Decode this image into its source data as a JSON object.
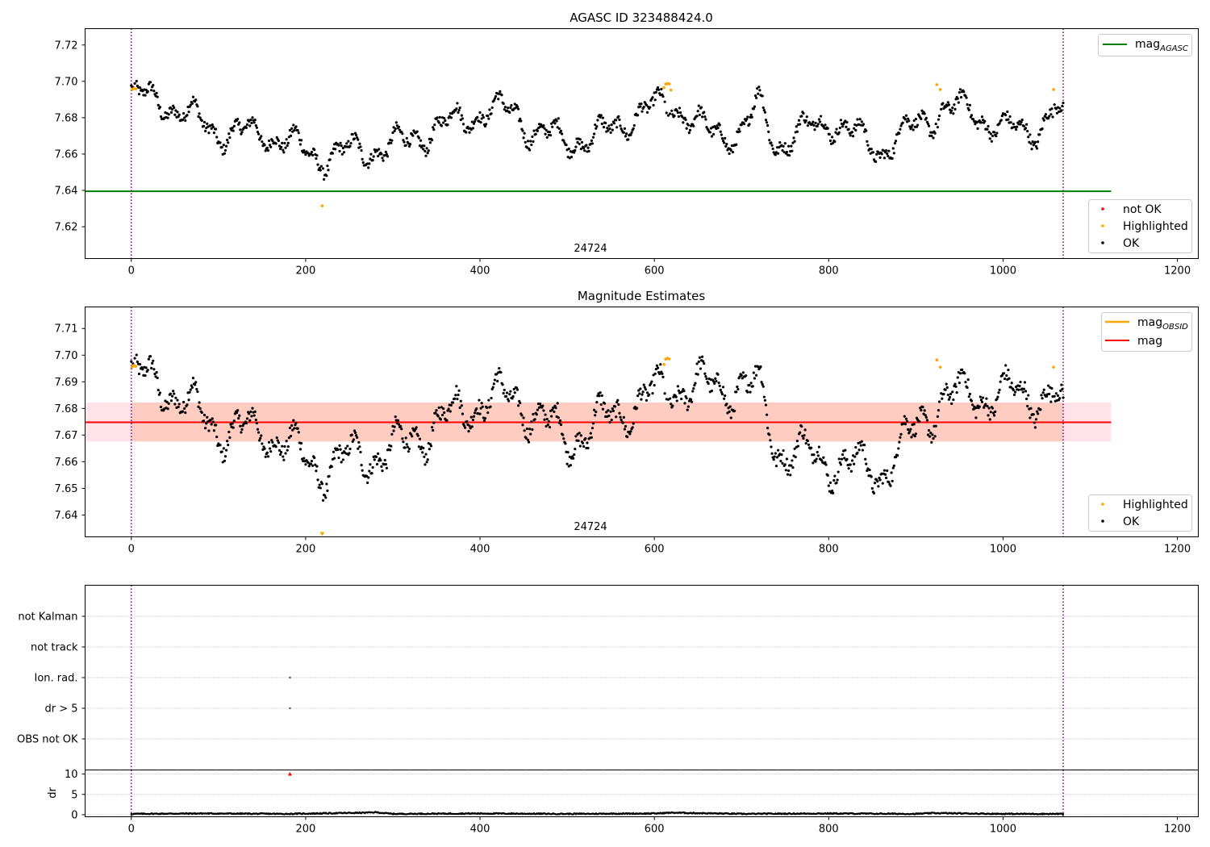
{
  "chart_data": [
    {
      "type": "scatter",
      "title": "AGASC ID 323488424.0",
      "xlim": [
        -53,
        1224
      ],
      "ylim": [
        7.6025,
        7.729
      ],
      "x_ticks": [
        "0",
        "200",
        "400",
        "600",
        "800",
        "1000",
        "1200"
      ],
      "y_ticks": [
        "7.62",
        "7.64",
        "7.66",
        "7.68",
        "7.70",
        "7.72"
      ],
      "obsid_label": "24724",
      "obsid_boundaries": [
        0,
        1069
      ],
      "reference_lines": [
        {
          "name": "mag_AGASC",
          "value": 7.6395,
          "x_range": [
            -53,
            1124
          ],
          "color": "#008000"
        }
      ],
      "series": [
        {
          "name": "not OK",
          "color": "#ff0000",
          "points": []
        },
        {
          "name": "Highlighted",
          "color": "#ffa500",
          "points": [
            [
              1,
              7.6955
            ],
            [
              3,
              7.6962
            ],
            [
              5,
              7.6958
            ],
            [
              219,
              7.6315
            ],
            [
              611,
              7.6965
            ],
            [
              613,
              7.6985
            ],
            [
              615,
              7.6988
            ],
            [
              617,
              7.6986
            ],
            [
              619,
              7.6952
            ],
            [
              924,
              7.6982
            ],
            [
              928,
              7.6955
            ],
            [
              1058,
              7.6955
            ]
          ]
        },
        {
          "name": "OK",
          "color": "#000000",
          "points": [
            [
              0,
              7.693
            ],
            [
              40,
              7.688
            ],
            [
              100,
              7.672
            ],
            [
              160,
              7.671
            ],
            [
              215,
              7.658
            ],
            [
              260,
              7.662
            ],
            [
              300,
              7.664
            ],
            [
              360,
              7.676
            ],
            [
              400,
              7.683
            ],
            [
              440,
              7.684
            ],
            [
              460,
              7.672
            ],
            [
              500,
              7.668
            ],
            [
              530,
              7.668
            ],
            [
              580,
              7.682
            ],
            [
              620,
              7.688
            ],
            [
              660,
              7.672
            ],
            [
              700,
              7.671
            ],
            [
              720,
              7.688
            ],
            [
              740,
              7.665
            ],
            [
              800,
              7.679
            ],
            [
              860,
              7.662
            ],
            [
              900,
              7.676
            ],
            [
              930,
              7.684
            ],
            [
              960,
              7.685
            ],
            [
              1000,
              7.673
            ],
            [
              1040,
              7.674
            ],
            [
              1060,
              7.685
            ],
            [
              1069,
              7.676
            ]
          ]
        }
      ],
      "legends": [
        {
          "position": "upper-right",
          "entries": [
            {
              "label_main": "mag",
              "label_sub": "AGASC",
              "color": "#008000",
              "kind": "line"
            }
          ]
        },
        {
          "position": "lower-right",
          "entries": [
            {
              "label": "not OK",
              "color": "#ff0000",
              "kind": "dot"
            },
            {
              "label": "Highlighted",
              "color": "#ffa500",
              "kind": "dot"
            },
            {
              "label": "OK",
              "color": "#000000",
              "kind": "dot"
            }
          ]
        }
      ]
    },
    {
      "type": "scatter",
      "title": "Magnitude Estimates",
      "xlim": [
        -53,
        1224
      ],
      "ylim": [
        7.6318,
        7.7181
      ],
      "x_ticks": [
        "0",
        "200",
        "400",
        "600",
        "800",
        "1000",
        "1200"
      ],
      "y_ticks": [
        "7.64",
        "7.65",
        "7.66",
        "7.67",
        "7.68",
        "7.69",
        "7.70",
        "7.71"
      ],
      "obsid_label": "24724",
      "obsid_boundaries": [
        0,
        1069
      ],
      "reference_lines": [
        {
          "name": "mag",
          "value": 7.6748,
          "x_range": [
            -53,
            1124
          ],
          "color": "#ff0000"
        }
      ],
      "bands": [
        {
          "name": "mag band",
          "y_range": [
            7.6676,
            7.6822
          ],
          "x_range": [
            -53,
            1124
          ],
          "color": "#ffc0cb"
        },
        {
          "name": "mag_OBSID band",
          "y_range": [
            7.6676,
            7.6822
          ],
          "x_range": [
            0,
            1069
          ],
          "color": "#ffa07a"
        }
      ],
      "series": [
        {
          "name": "Highlighted",
          "color": "#ffa500",
          "points": [
            [
              1,
              7.6955
            ],
            [
              3,
              7.6962
            ],
            [
              5,
              7.6958
            ],
            [
              611,
              7.6965
            ],
            [
              613,
              7.6985
            ],
            [
              615,
              7.6988
            ],
            [
              617,
              7.6986
            ],
            [
              924,
              7.6982
            ],
            [
              928,
              7.6955
            ],
            [
              1058,
              7.6955
            ]
          ]
        },
        {
          "name": "OK",
          "color": "#000000",
          "points": [
            [
              0,
              7.693
            ],
            [
              40,
              7.688
            ],
            [
              100,
              7.672
            ],
            [
              160,
              7.671
            ],
            [
              215,
              7.657
            ],
            [
              260,
              7.662
            ],
            [
              300,
              7.664
            ],
            [
              360,
              7.676
            ],
            [
              400,
              7.683
            ],
            [
              440,
              7.684
            ],
            [
              500,
              7.668
            ],
            [
              580,
              7.682
            ],
            [
              620,
              7.688
            ],
            [
              720,
              7.688
            ],
            [
              740,
              7.665
            ],
            [
              860,
              7.656
            ],
            [
              930,
              7.684
            ],
            [
              960,
              7.685
            ],
            [
              1060,
              7.685
            ],
            [
              1069,
              7.676
            ]
          ]
        }
      ],
      "out_of_range_markers": [
        {
          "x": 219,
          "color": "#ffa500"
        }
      ],
      "legends": [
        {
          "position": "upper-right",
          "entries": [
            {
              "label_main": "mag",
              "label_sub": "OBSID",
              "color": "#ffa500",
              "kind": "line"
            },
            {
              "label": "mag",
              "color": "#ff0000",
              "kind": "line"
            }
          ]
        },
        {
          "position": "lower-right",
          "entries": [
            {
              "label": "Highlighted",
              "color": "#ffa500",
              "kind": "dot"
            },
            {
              "label": "OK",
              "color": "#000000",
              "kind": "dot"
            }
          ]
        }
      ]
    },
    {
      "type": "scatter",
      "title": "",
      "xlim": [
        -53,
        1224
      ],
      "categories": [
        "not Kalman",
        "not track",
        "Ion. rad.",
        "dr > 5",
        "OBS not OK"
      ],
      "obsid_boundaries": [
        0,
        1069
      ],
      "flag_points": [
        {
          "category": "Ion. rad.",
          "x": 182
        },
        {
          "category": "dr > 5",
          "x": 182
        }
      ]
    },
    {
      "type": "scatter",
      "title": "",
      "xlim": [
        -53,
        1224
      ],
      "ylim": [
        -0.5,
        11
      ],
      "ylabel": "dr",
      "x_ticks": [
        "0",
        "200",
        "400",
        "600",
        "800",
        "1000",
        "1200"
      ],
      "y_ticks": [
        "0",
        "5",
        "10"
      ],
      "obsid_boundaries": [
        0,
        1069
      ],
      "clipped_markers": [
        {
          "x": 182,
          "value": 10,
          "color": "#ff0000"
        }
      ],
      "dr_profile": [
        [
          0,
          0.2
        ],
        [
          80,
          0.3
        ],
        [
          180,
          0.2
        ],
        [
          270,
          0.5
        ],
        [
          280,
          0.6
        ],
        [
          300,
          0.2
        ],
        [
          400,
          0.3
        ],
        [
          500,
          0.2
        ],
        [
          600,
          0.3
        ],
        [
          620,
          0.5
        ],
        [
          700,
          0.2
        ],
        [
          800,
          0.3
        ],
        [
          900,
          0.2
        ],
        [
          920,
          0.4
        ],
        [
          1000,
          0.2
        ],
        [
          1069,
          0.2
        ]
      ]
    }
  ]
}
